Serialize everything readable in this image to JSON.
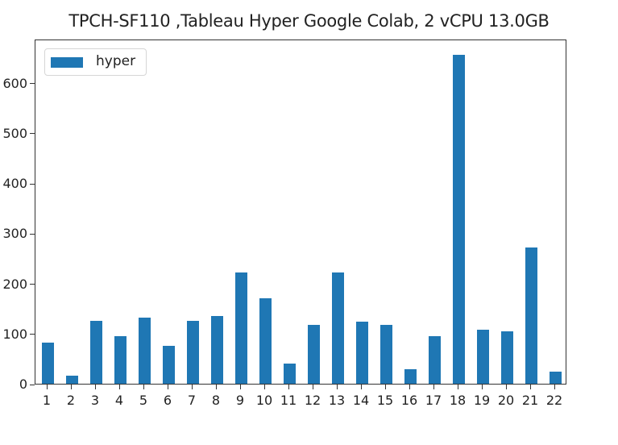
{
  "chart_data": {
    "type": "bar",
    "title": "TPCH-SF110 ,Tableau Hyper Google Colab, 2 vCPU 13.0GB",
    "xlabel": "",
    "ylabel": "",
    "categories": [
      "1",
      "2",
      "3",
      "4",
      "5",
      "6",
      "7",
      "8",
      "9",
      "10",
      "11",
      "12",
      "13",
      "14",
      "15",
      "16",
      "17",
      "18",
      "19",
      "20",
      "21",
      "22"
    ],
    "series": [
      {
        "name": "hyper",
        "color": "#1f77b4",
        "values": [
          82,
          16,
          125,
          95,
          132,
          76,
          125,
          135,
          222,
          171,
          40,
          117,
          222,
          124,
          117,
          29,
          95,
          656,
          108,
          104,
          272,
          24
        ]
      }
    ],
    "ylim": [
      0,
      688
    ],
    "yticks": [
      0,
      100,
      200,
      300,
      400,
      500,
      600
    ],
    "ytick_labels": [
      "0",
      "100",
      "200",
      "300",
      "400",
      "500",
      "600"
    ],
    "grid": false,
    "legend": {
      "position": "upper left",
      "entries": [
        "hyper"
      ]
    }
  },
  "legend_label": "hyper"
}
